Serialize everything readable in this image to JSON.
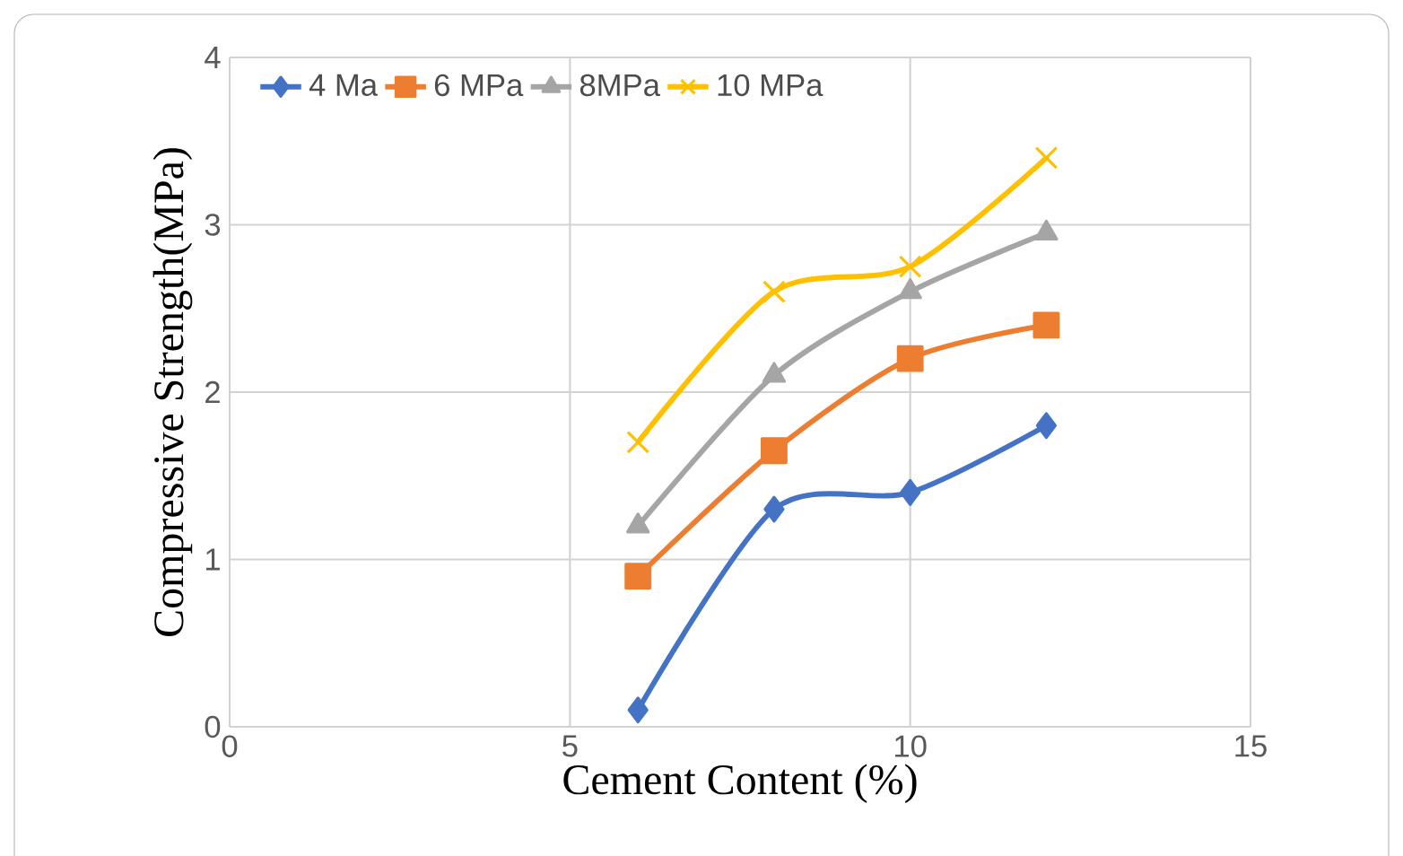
{
  "chart_data": {
    "type": "line",
    "xlabel": "Cement  Content (%)",
    "ylabel": "Compressive Strength(MPa)",
    "x": [
      6,
      8,
      10,
      12
    ],
    "series": [
      {
        "name": "4 Ma",
        "color": "#4472c4",
        "marker": "diamond",
        "values": [
          0.1,
          1.3,
          1.4,
          1.8
        ]
      },
      {
        "name": "6 MPa",
        "color": "#ed7d31",
        "marker": "square",
        "values": [
          0.9,
          1.65,
          2.2,
          2.4
        ]
      },
      {
        "name": "8MPa",
        "color": "#a5a5a5",
        "marker": "triangle",
        "values": [
          1.2,
          2.1,
          2.6,
          2.95
        ]
      },
      {
        "name": "10 MPa",
        "color": "#ffc000",
        "marker": "cross",
        "values": [
          1.7,
          2.6,
          2.75,
          3.4
        ]
      }
    ],
    "xlim": [
      0,
      15
    ],
    "xticks": [
      0,
      5,
      10,
      15
    ],
    "ylim": [
      0,
      4
    ],
    "yticks": [
      0,
      1,
      2,
      3,
      4
    ],
    "grid": true,
    "legend": "top left"
  }
}
